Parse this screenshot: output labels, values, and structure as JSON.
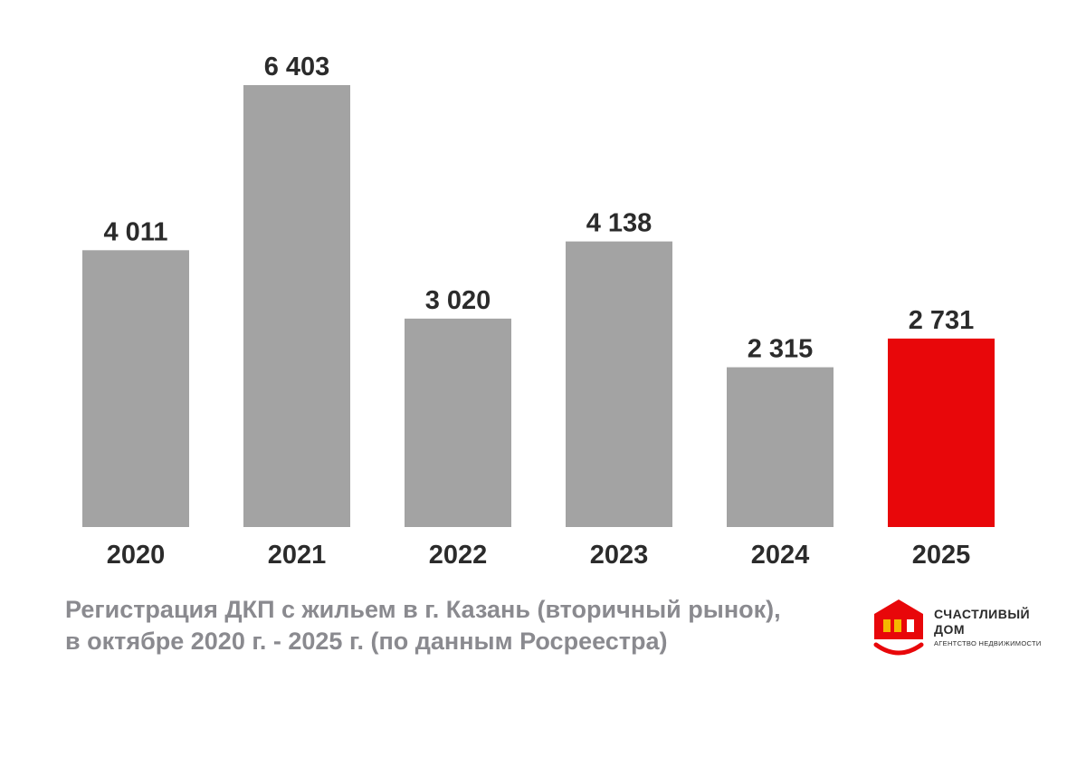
{
  "chart_data": {
    "type": "bar",
    "categories": [
      "2020",
      "2021",
      "2022",
      "2023",
      "2024",
      "2025"
    ],
    "values": [
      4011,
      6403,
      3020,
      4138,
      2315,
      2731
    ],
    "value_labels": [
      "4 011",
      "6 403",
      "3 020",
      "4 138",
      "2 315",
      "2 731"
    ],
    "title": "",
    "xlabel": "",
    "ylabel": "",
    "ylim": [
      0,
      6403
    ],
    "grid": false,
    "legend": "none",
    "colors": {
      "bar": "#a3a3a3",
      "highlight": "#e8070a",
      "highlight_category": "2025"
    }
  },
  "caption": {
    "line1": "Регистрация ДКП с жильем в г. Казань (вторичный рынок),",
    "line2": "в октябре 2020 г. - 2025 г. (по данным Росреестра)"
  },
  "logo": {
    "name_line1": "СЧАСТЛИВЫЙ",
    "name_line2": "ДОМ",
    "tagline": "АГЕНТСТВО НЕДВИЖИМОСТИ",
    "colors": {
      "house": "#e8070a",
      "window": "#f5b800",
      "smile": "#e8070a"
    }
  }
}
